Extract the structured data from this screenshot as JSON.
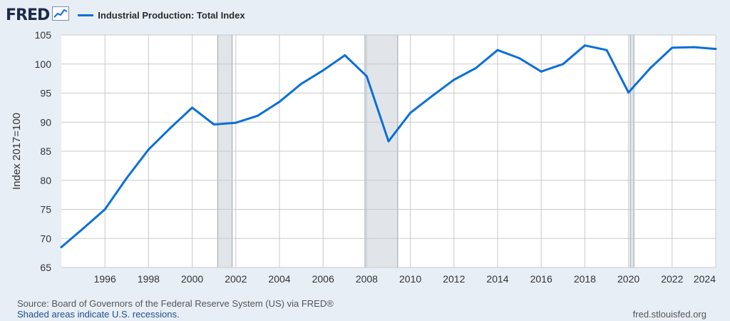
{
  "header": {
    "logo_text": "FRED",
    "logo_icon": "line-graph-icon"
  },
  "chart_data": {
    "type": "line",
    "title": "",
    "legend": "Industrial Production: Total Index",
    "ylabel": "Index 2017=100",
    "xlabel": "",
    "xlim": [
      1994,
      2024
    ],
    "ylim": [
      65,
      105
    ],
    "yticks": [
      65,
      70,
      75,
      80,
      85,
      90,
      95,
      100,
      105
    ],
    "xticks": [
      1996,
      1998,
      2000,
      2002,
      2004,
      2006,
      2008,
      2010,
      2012,
      2014,
      2016,
      2018,
      2020,
      2022,
      2024
    ],
    "grid": true,
    "line_color": "#0b6fd8",
    "recession_color": "#e1e5ea",
    "recessions": [
      [
        2001.17,
        2001.83
      ],
      [
        2007.92,
        2009.42
      ],
      [
        2020.08,
        2020.25
      ]
    ],
    "series": [
      {
        "name": "Industrial Production: Total Index",
        "x": [
          1994,
          1995,
          1996,
          1997,
          1998,
          1999,
          2000,
          2001,
          2002,
          2003,
          2004,
          2005,
          2006,
          2007,
          2008,
          2009,
          2010,
          2011,
          2012,
          2013,
          2014,
          2015,
          2016,
          2017,
          2018,
          2019,
          2020,
          2021,
          2022,
          2023,
          2024
        ],
        "values": [
          68.5,
          71.7,
          75.0,
          80.4,
          85.3,
          89.0,
          92.5,
          89.6,
          89.9,
          91.1,
          93.5,
          96.6,
          98.9,
          101.5,
          97.9,
          86.7,
          91.6,
          94.5,
          97.3,
          99.3,
          102.4,
          101.0,
          98.7,
          100.0,
          103.2,
          102.4,
          95.1,
          99.3,
          102.8,
          102.9,
          102.6
        ]
      }
    ]
  },
  "footer": {
    "source": "Source: Board of Governors of the Federal Reserve System (US) via FRED®",
    "note": "Shaded areas indicate U.S. recessions.",
    "url": "fred.stlouisfed.org"
  }
}
